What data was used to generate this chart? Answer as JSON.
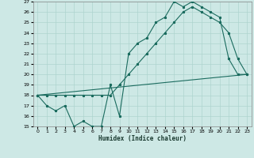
{
  "xlabel": "Humidex (Indice chaleur)",
  "xlim": [
    -0.5,
    23.5
  ],
  "ylim": [
    15,
    27
  ],
  "xticks": [
    0,
    1,
    2,
    3,
    4,
    5,
    6,
    7,
    8,
    9,
    10,
    11,
    12,
    13,
    14,
    15,
    16,
    17,
    18,
    19,
    20,
    21,
    22,
    23
  ],
  "yticks": [
    15,
    16,
    17,
    18,
    19,
    20,
    21,
    22,
    23,
    24,
    25,
    26,
    27
  ],
  "bg_color": "#cde8e5",
  "line_color": "#1a6b5e",
  "grid_color": "#aed4cf",
  "line1_x": [
    0,
    1,
    2,
    3,
    4,
    5,
    6,
    7,
    8,
    9,
    10,
    11,
    12,
    13,
    14,
    15,
    16,
    17,
    18,
    19,
    20,
    21,
    22,
    23
  ],
  "line1_y": [
    18,
    17,
    16.5,
    17,
    15,
    15.5,
    15,
    15,
    19,
    16,
    22,
    23,
    23.5,
    25,
    25.5,
    27,
    26.5,
    27,
    26.5,
    26,
    25.5,
    21.5,
    20,
    20
  ],
  "line2_x": [
    0,
    1,
    2,
    3,
    4,
    5,
    6,
    7,
    8,
    9,
    10,
    11,
    12,
    13,
    14,
    15,
    16,
    17,
    18,
    19,
    20,
    21,
    22,
    23
  ],
  "line2_y": [
    18,
    18,
    18,
    18,
    18,
    18,
    18,
    18,
    18,
    19,
    20,
    21,
    22,
    23,
    24,
    25,
    26,
    26.5,
    26,
    25.5,
    25,
    24,
    21.5,
    20
  ],
  "line3_x": [
    0,
    23
  ],
  "line3_y": [
    18,
    20
  ]
}
